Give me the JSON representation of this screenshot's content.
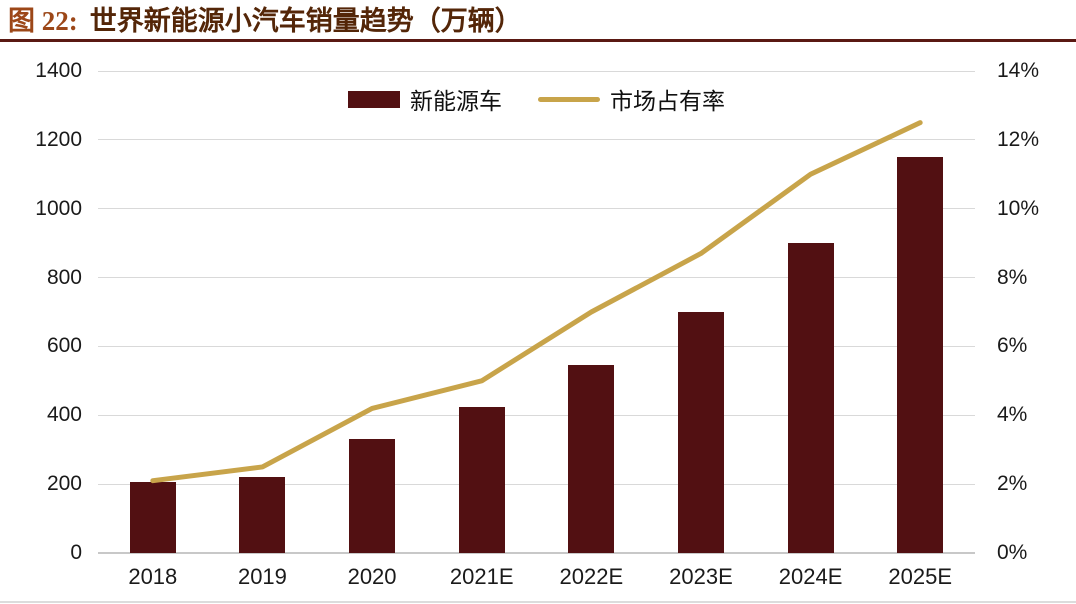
{
  "header": {
    "prefix": "图 22:",
    "title": "世界新能源小汽车销量趋势（万辆）"
  },
  "colors": {
    "bar": "#521012",
    "line": "#c8a44a",
    "title_prefix": "#9c4718",
    "title_text": "#542608",
    "title_rule": "#5a1913",
    "gridline": "#d9d9d9",
    "axis_text": "#1a1a1a"
  },
  "chart_data": {
    "type": "bar",
    "subtype": "combo-bar-line-dual-axis",
    "title": "图 22: 世界新能源小汽车销量趋势（万辆）",
    "categories": [
      "2018",
      "2019",
      "2020",
      "2021E",
      "2022E",
      "2023E",
      "2024E",
      "2025E"
    ],
    "series": [
      {
        "name": "新能源车",
        "kind": "bar",
        "axis": "left",
        "unit": "万辆",
        "color": "#521012",
        "values": [
          205,
          220,
          330,
          425,
          545,
          700,
          900,
          1150
        ]
      },
      {
        "name": "市场占有率",
        "kind": "line",
        "axis": "right",
        "unit": "%",
        "color": "#c8a44a",
        "values": [
          2.1,
          2.5,
          4.2,
          5.0,
          7.0,
          8.7,
          11.0,
          12.5
        ]
      }
    ],
    "left_axis": {
      "min": 0,
      "max": 1400,
      "step": 200
    },
    "right_axis": {
      "min": 0,
      "max": 14,
      "step": 2,
      "suffix": "%"
    },
    "grid": true,
    "legend_position": "top-center"
  }
}
